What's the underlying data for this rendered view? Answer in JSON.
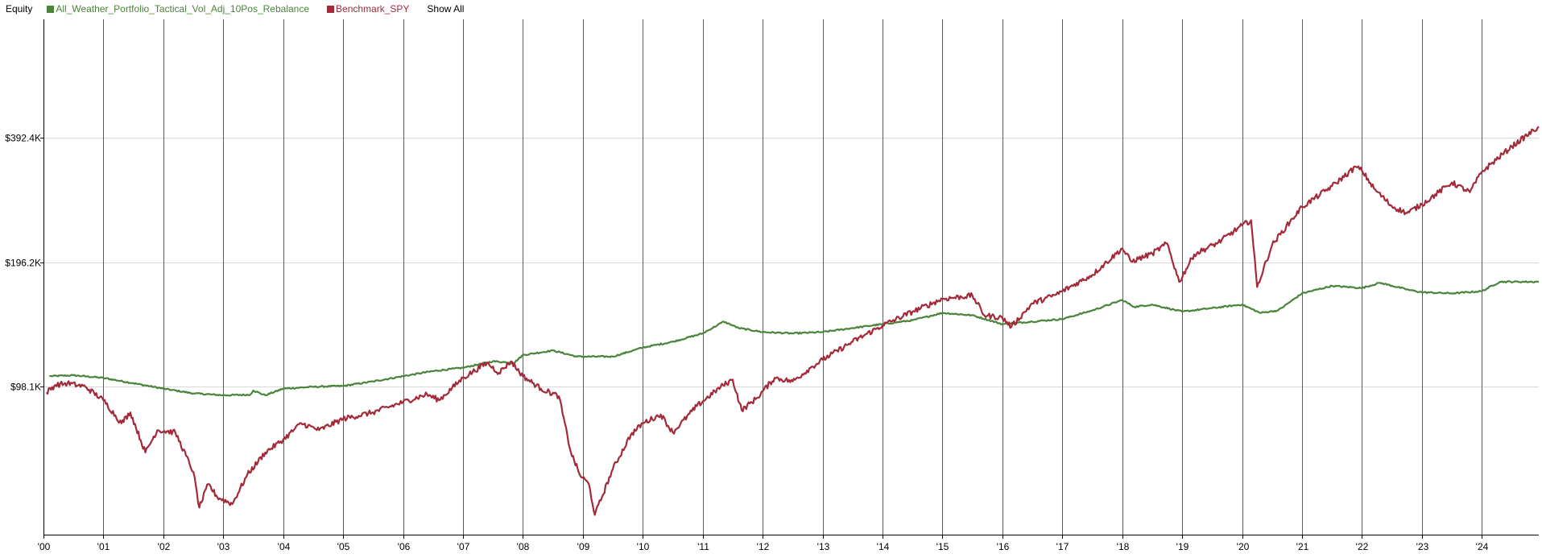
{
  "legend": {
    "title": "Equity",
    "items": [
      {
        "name": "All_Weather_Portfolio_Tactical_Vol_Adj_10Pos_Rebalance",
        "color": "#4a843a"
      },
      {
        "name": "Benchmark_SPY",
        "color": "#a32a38"
      }
    ],
    "show_all_label": "Show All"
  },
  "chart_data": {
    "type": "line",
    "title": "Equity",
    "xlabel": "",
    "ylabel": "",
    "x_tick_labels": [
      "'00",
      "'01",
      "'02",
      "'03",
      "'04",
      "'05",
      "'06",
      "'07",
      "'08",
      "'09",
      "'10",
      "'11",
      "'12",
      "'13",
      "'14",
      "'15",
      "'16",
      "'17",
      "'18",
      "'19",
      "'20",
      "'21",
      "'22",
      "'23",
      "'24"
    ],
    "y_tick_labels": [
      "$98.1K",
      "$196.2K",
      "$392.4K"
    ],
    "y_tick_values": [
      98100,
      196200,
      392400
    ],
    "y_scale": "log",
    "xlim": [
      2000.0,
      2024.95
    ],
    "ylim": [
      43000,
      760000
    ],
    "grid": {
      "vertical": true,
      "horizontal": true
    },
    "legend_position": "top-left",
    "series": [
      {
        "name": "All_Weather_Portfolio_Tactical_Vol_Adj_10Pos_Rebalance",
        "color": "#4a843a",
        "points": [
          [
            2000.1,
            104000
          ],
          [
            2000.5,
            104500
          ],
          [
            2001.0,
            103000
          ],
          [
            2001.5,
            100000
          ],
          [
            2002.0,
            97000
          ],
          [
            2002.5,
            94500
          ],
          [
            2003.0,
            93500
          ],
          [
            2003.45,
            93800
          ],
          [
            2003.5,
            96000
          ],
          [
            2003.7,
            93500
          ],
          [
            2004.0,
            97000
          ],
          [
            2004.5,
            98000
          ],
          [
            2005.0,
            98500
          ],
          [
            2005.5,
            101000
          ],
          [
            2006.0,
            104000
          ],
          [
            2006.5,
            107000
          ],
          [
            2007.0,
            109000
          ],
          [
            2007.5,
            113000
          ],
          [
            2007.85,
            112000
          ],
          [
            2008.0,
            117000
          ],
          [
            2008.5,
            120000
          ],
          [
            2008.9,
            116000
          ],
          [
            2009.5,
            116000
          ],
          [
            2010.0,
            122000
          ],
          [
            2010.5,
            126000
          ],
          [
            2011.0,
            132000
          ],
          [
            2011.35,
            141000
          ],
          [
            2011.6,
            136000
          ],
          [
            2012.0,
            133000
          ],
          [
            2012.5,
            132000
          ],
          [
            2013.0,
            133000
          ],
          [
            2013.5,
            136000
          ],
          [
            2014.0,
            139000
          ],
          [
            2014.5,
            142000
          ],
          [
            2015.0,
            148000
          ],
          [
            2015.5,
            146000
          ],
          [
            2016.0,
            139000
          ],
          [
            2016.5,
            141000
          ],
          [
            2017.0,
            143000
          ],
          [
            2017.5,
            150000
          ],
          [
            2018.0,
            159000
          ],
          [
            2018.2,
            153000
          ],
          [
            2018.5,
            155000
          ],
          [
            2019.0,
            149000
          ],
          [
            2019.5,
            152000
          ],
          [
            2020.0,
            155000
          ],
          [
            2020.3,
            148000
          ],
          [
            2020.6,
            150000
          ],
          [
            2021.0,
            165000
          ],
          [
            2021.5,
            172000
          ],
          [
            2022.0,
            170000
          ],
          [
            2022.3,
            175000
          ],
          [
            2022.8,
            168000
          ],
          [
            2023.0,
            166000
          ],
          [
            2023.5,
            165000
          ],
          [
            2024.0,
            167000
          ],
          [
            2024.3,
            176000
          ],
          [
            2024.95,
            176000
          ]
        ]
      },
      {
        "name": "Benchmark_SPY",
        "color": "#a32a38",
        "points": [
          [
            2000.05,
            95000
          ],
          [
            2000.2,
            99000
          ],
          [
            2000.4,
            100000
          ],
          [
            2000.7,
            98000
          ],
          [
            2001.0,
            91000
          ],
          [
            2001.3,
            80000
          ],
          [
            2001.45,
            85000
          ],
          [
            2001.7,
            68000
          ],
          [
            2001.9,
            77000
          ],
          [
            2002.2,
            76000
          ],
          [
            2002.5,
            61000
          ],
          [
            2002.6,
            50000
          ],
          [
            2002.75,
            57000
          ],
          [
            2002.9,
            53000
          ],
          [
            2003.15,
            51000
          ],
          [
            2003.4,
            60000
          ],
          [
            2003.7,
            68000
          ],
          [
            2004.0,
            73000
          ],
          [
            2004.3,
            80000
          ],
          [
            2004.6,
            77000
          ],
          [
            2005.0,
            82000
          ],
          [
            2005.5,
            85000
          ],
          [
            2006.0,
            90000
          ],
          [
            2006.4,
            94000
          ],
          [
            2006.6,
            91000
          ],
          [
            2007.0,
            103000
          ],
          [
            2007.4,
            112000
          ],
          [
            2007.6,
            106000
          ],
          [
            2007.8,
            113000
          ],
          [
            2008.0,
            104000
          ],
          [
            2008.3,
            97000
          ],
          [
            2008.6,
            93000
          ],
          [
            2008.8,
            68000
          ],
          [
            2008.95,
            60000
          ],
          [
            2009.1,
            57000
          ],
          [
            2009.2,
            48000
          ],
          [
            2009.5,
            62000
          ],
          [
            2009.8,
            75000
          ],
          [
            2010.0,
            80000
          ],
          [
            2010.3,
            84000
          ],
          [
            2010.5,
            76000
          ],
          [
            2010.9,
            88000
          ],
          [
            2011.3,
            98000
          ],
          [
            2011.5,
            102000
          ],
          [
            2011.65,
            86000
          ],
          [
            2011.9,
            92000
          ],
          [
            2012.2,
            103000
          ],
          [
            2012.5,
            101000
          ],
          [
            2012.8,
            109000
          ],
          [
            2013.0,
            114000
          ],
          [
            2013.5,
            126000
          ],
          [
            2014.0,
            138000
          ],
          [
            2014.5,
            149000
          ],
          [
            2015.0,
            160000
          ],
          [
            2015.5,
            163000
          ],
          [
            2015.7,
            146000
          ],
          [
            2016.0,
            144000
          ],
          [
            2016.15,
            137000
          ],
          [
            2016.5,
            156000
          ],
          [
            2016.9,
            164000
          ],
          [
            2017.0,
            167000
          ],
          [
            2017.5,
            183000
          ],
          [
            2018.0,
            212000
          ],
          [
            2018.15,
            197000
          ],
          [
            2018.5,
            206000
          ],
          [
            2018.75,
            218000
          ],
          [
            2018.95,
            176000
          ],
          [
            2019.2,
            205000
          ],
          [
            2019.6,
            219000
          ],
          [
            2020.0,
            241000
          ],
          [
            2020.15,
            248000
          ],
          [
            2020.25,
            171000
          ],
          [
            2020.5,
            216000
          ],
          [
            2020.8,
            246000
          ],
          [
            2021.0,
            267000
          ],
          [
            2021.5,
            300000
          ],
          [
            2021.9,
            334000
          ],
          [
            2022.0,
            327000
          ],
          [
            2022.2,
            296000
          ],
          [
            2022.5,
            268000
          ],
          [
            2022.75,
            258000
          ],
          [
            2023.0,
            271000
          ],
          [
            2023.5,
            306000
          ],
          [
            2023.8,
            290000
          ],
          [
            2024.0,
            325000
          ],
          [
            2024.5,
            374000
          ],
          [
            2024.95,
            418000
          ]
        ]
      }
    ]
  }
}
